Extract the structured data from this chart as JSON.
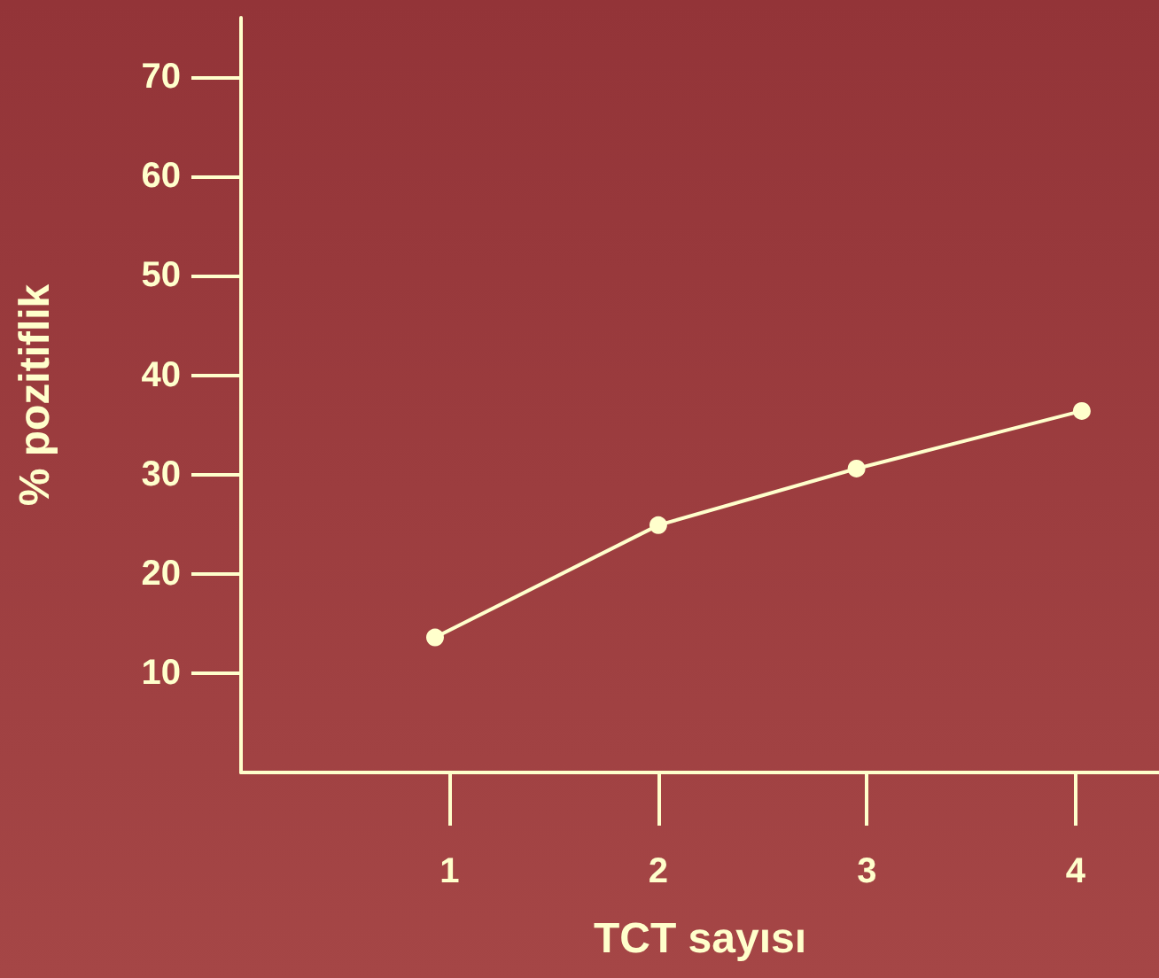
{
  "chart_data": {
    "type": "line",
    "xlabel": "TCT sayısı",
    "ylabel": "% pozitiflik",
    "x": [
      0.93,
      2,
      2.95,
      4.03
    ],
    "series": [
      {
        "color": "#ffffcc",
        "values": [
          13.6,
          24.9,
          30.6,
          36.4
        ]
      }
    ],
    "xlim": [
      0,
      4.4
    ],
    "xticks": [
      1,
      2,
      3,
      4
    ],
    "ylim": [
      0,
      76
    ],
    "yticks": [
      10,
      20,
      30,
      40,
      50,
      60,
      70
    ],
    "grid": false,
    "marker": "circle",
    "line_style": "solid"
  }
}
